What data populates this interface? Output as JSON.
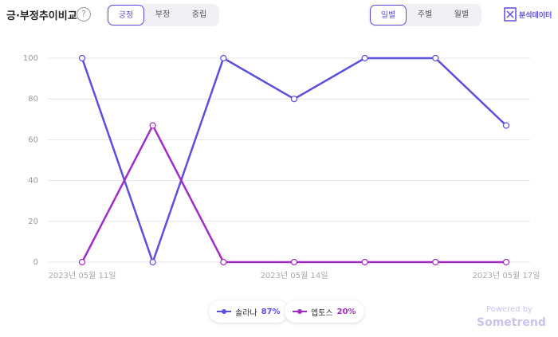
{
  "header": {
    "title": "긍·부정추이비교",
    "help": "?",
    "sentiment_tabs": [
      {
        "label": "긍정",
        "active": true
      },
      {
        "label": "부정",
        "active": false
      },
      {
        "label": "중립",
        "active": false
      }
    ],
    "period_tabs": [
      {
        "label": "일별",
        "active": true
      },
      {
        "label": "주별",
        "active": false
      },
      {
        "label": "월별",
        "active": false
      }
    ],
    "export": "분석데이터"
  },
  "chart_data": {
    "type": "line",
    "categories": [
      "2023년 05월 11일",
      null,
      null,
      "2023년 05월 14일",
      null,
      null,
      "2023년 05월 17일"
    ],
    "series": [
      {
        "name": "솔라나",
        "share_label": "87%",
        "color": "#5b4fdc",
        "values": [
          100,
          0,
          100,
          80,
          100,
          100,
          67
        ]
      },
      {
        "name": "엡토스",
        "share_label": "20%",
        "color": "#a22cc4",
        "values": [
          0,
          67,
          0,
          0,
          0,
          0,
          0
        ]
      }
    ],
    "ylim": [
      0,
      100
    ],
    "yticks": [
      0,
      20,
      40,
      60,
      80,
      100
    ],
    "grid": true
  },
  "footer": {
    "powered": "Powered by",
    "brand": "Sometrend"
  }
}
